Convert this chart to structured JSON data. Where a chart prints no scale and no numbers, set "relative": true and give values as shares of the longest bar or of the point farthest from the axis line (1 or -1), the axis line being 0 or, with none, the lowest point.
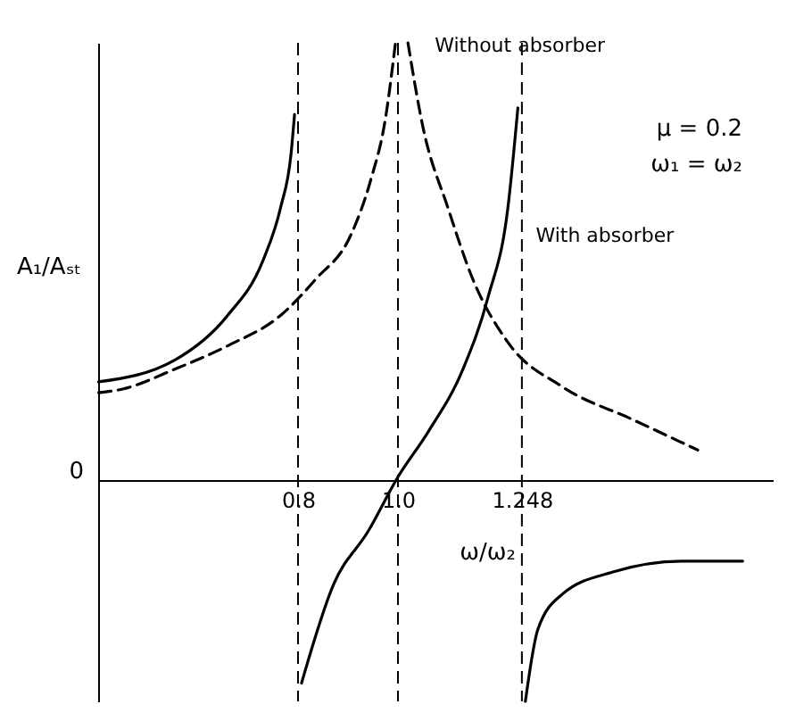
{
  "chart_data": {
    "type": "line",
    "relative": true,
    "xlabel": "ω/ω₂",
    "ylabel": "A₁/Aₛₜ",
    "xlim": [
      0.4,
      1.75
    ],
    "xticks": [
      0.8,
      {
        "value": 1,
        "label": "1.0"
      },
      1.248
    ],
    "series": [
      {
        "name": "Without absorber",
        "color": "#000000",
        "line_style": "dashed",
        "x": [
          0.401,
          0.447,
          0.553,
          0.659,
          0.765,
          0.835,
          0.906,
          0.945,
          0.975,
          0.995
        ],
        "values": [
          0.194,
          0.202,
          0.248,
          0.302,
          0.372,
          0.455,
          0.558,
          0.682,
          0.826,
          1.0
        ]
      },
      {
        "color": "#000000",
        "line_style": "dashed",
        "x": [
          1.02,
          1.05,
          1.1,
          1.15,
          1.22,
          1.33,
          1.47,
          1.6
        ],
        "values": [
          1.0,
          0.806,
          0.62,
          0.455,
          0.31,
          0.207,
          0.132,
          0.062
        ]
      },
      {
        "color": "#000000",
        "line_style": "solid",
        "x": [
          0.401,
          0.553,
          0.659,
          0.729,
          0.765,
          0.786,
          0.793
        ],
        "values": [
          0.219,
          0.269,
          0.372,
          0.496,
          0.62,
          0.744,
          0.835
        ]
      },
      {
        "name": "With absorber",
        "color": "#000000",
        "line_style": "solid",
        "x": [
          0.807,
          0.871,
          0.941,
          1.0,
          1.06,
          1.13,
          1.18,
          1.22,
          1.24
        ],
        "values": [
          -0.475,
          -0.248,
          -0.124,
          0,
          0.103,
          0.248,
          0.413,
          0.62,
          0.85
        ]
      },
      {
        "color": "#000000",
        "line_style": "solid",
        "x": [
          1.255,
          1.28,
          1.33,
          1.43,
          1.57,
          1.69
        ],
        "values": [
          -0.517,
          -0.351,
          -0.269,
          -0.219,
          -0.194,
          -0.194
        ]
      }
    ],
    "ref_lines": [
      {
        "axis": "x",
        "value": 0.8,
        "line_style": "dashed",
        "color": "#000000"
      },
      {
        "axis": "x",
        "value": 1.0,
        "line_style": "dashed",
        "color": "#000000"
      },
      {
        "axis": "x",
        "value": 1.248,
        "line_style": "dashed",
        "color": "#000000"
      }
    ],
    "annotations": [
      "0",
      "μ = 0.2",
      "ω₁ = ω₂"
    ]
  }
}
